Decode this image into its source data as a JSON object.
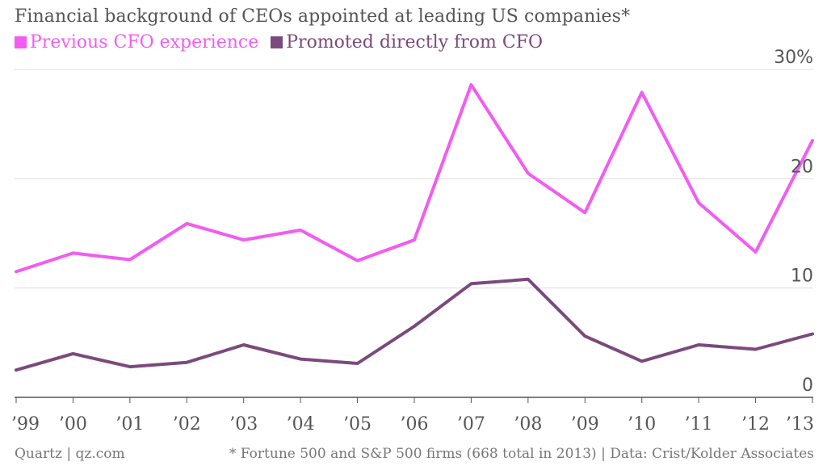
{
  "chart_data": {
    "type": "line",
    "title": "Financial background of CEOs appointed at leading US companies*",
    "categories": [
      "’99",
      "’00",
      "’01",
      "’02",
      "’03",
      "’04",
      "’05",
      "’06",
      "’07",
      "’08",
      "’09",
      "’10",
      "’11",
      "’12",
      "’13"
    ],
    "series": [
      {
        "name": "Previous CFO experience",
        "color": "#f25cf2",
        "values": [
          11.5,
          13.2,
          12.6,
          15.9,
          14.4,
          15.3,
          12.5,
          14.4,
          28.6,
          20.5,
          16.9,
          27.9,
          17.8,
          13.3,
          23.5
        ]
      },
      {
        "name": "Promoted directly from CFO",
        "color": "#7b4a7d",
        "values": [
          2.5,
          4.0,
          2.8,
          3.2,
          4.8,
          3.5,
          3.1,
          6.5,
          10.4,
          10.8,
          5.6,
          3.3,
          4.8,
          4.4,
          5.8
        ]
      }
    ],
    "y_ticks": [
      {
        "value": 0,
        "label": "0"
      },
      {
        "value": 10,
        "label": "10"
      },
      {
        "value": 20,
        "label": "20"
      },
      {
        "value": 30,
        "label": "30%"
      }
    ],
    "ylim": [
      0,
      30
    ],
    "xlabel": "",
    "ylabel": "",
    "grid": true,
    "legend_position": "top-left"
  },
  "footer": {
    "source_left": "Quartz | qz.com",
    "note_right": "* Fortune 500 and S&P 500 firms (668 total in 2013) | Data: Crist/Kolder Associates"
  }
}
